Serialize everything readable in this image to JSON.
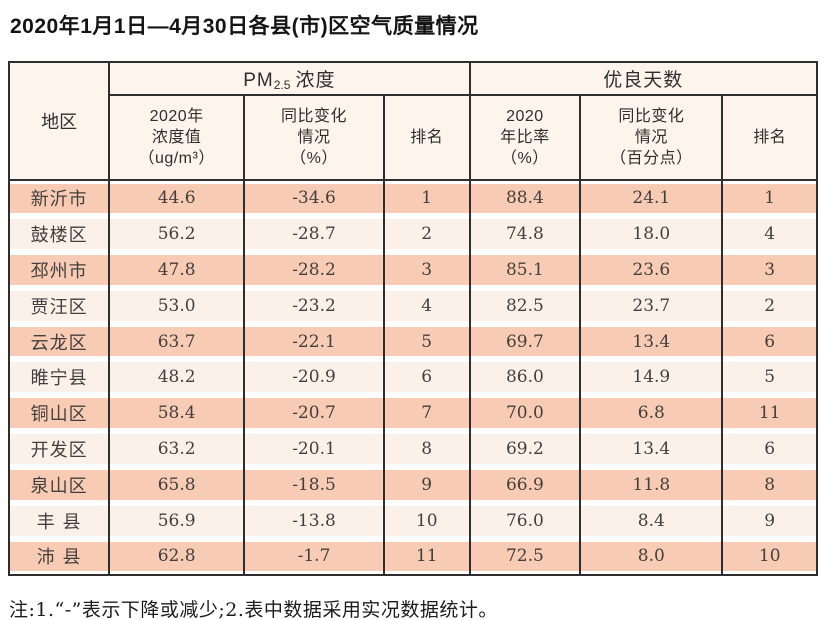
{
  "page": {
    "title": "2020年1月1日—4月30日各县(市)区空气质量情况",
    "note": "注:1.“-”表示下降或减少;2.表中数据采用实况数据统计。"
  },
  "table": {
    "region_header": "地区",
    "groups": {
      "pm25": {
        "prefix": "PM",
        "sub": "2.5",
        "suffix": "浓度"
      },
      "good_days": "优良天数"
    },
    "subheaders": {
      "pm_value": "2020年\n浓度值\n（ug/m³）",
      "pm_change": "同比变化\n情况\n（%）",
      "pm_rank": "排名",
      "gd_ratio": "2020\n年比率\n（%）",
      "gd_change": "同比变化\n情况\n（百分点）",
      "gd_rank": "排名"
    },
    "rows": [
      {
        "region": "新沂市",
        "pm_value": "44.6",
        "pm_change": "-34.6",
        "pm_rank": "1",
        "gd_ratio": "88.4",
        "gd_change": "24.1",
        "gd_rank": "1"
      },
      {
        "region": "鼓楼区",
        "pm_value": "56.2",
        "pm_change": "-28.7",
        "pm_rank": "2",
        "gd_ratio": "74.8",
        "gd_change": "18.0",
        "gd_rank": "4"
      },
      {
        "region": "邳州市",
        "pm_value": "47.8",
        "pm_change": "-28.2",
        "pm_rank": "3",
        "gd_ratio": "85.1",
        "gd_change": "23.6",
        "gd_rank": "3"
      },
      {
        "region": "贾汪区",
        "pm_value": "53.0",
        "pm_change": "-23.2",
        "pm_rank": "4",
        "gd_ratio": "82.5",
        "gd_change": "23.7",
        "gd_rank": "2"
      },
      {
        "region": "云龙区",
        "pm_value": "63.7",
        "pm_change": "-22.1",
        "pm_rank": "5",
        "gd_ratio": "69.7",
        "gd_change": "13.4",
        "gd_rank": "6"
      },
      {
        "region": "睢宁县",
        "pm_value": "48.2",
        "pm_change": "-20.9",
        "pm_rank": "6",
        "gd_ratio": "86.0",
        "gd_change": "14.9",
        "gd_rank": "5"
      },
      {
        "region": "铜山区",
        "pm_value": "58.4",
        "pm_change": "-20.7",
        "pm_rank": "7",
        "gd_ratio": "70.0",
        "gd_change": "6.8",
        "gd_rank": "11"
      },
      {
        "region": "开发区",
        "pm_value": "63.2",
        "pm_change": "-20.1",
        "pm_rank": "8",
        "gd_ratio": "69.2",
        "gd_change": "13.4",
        "gd_rank": "6"
      },
      {
        "region": "泉山区",
        "pm_value": "65.8",
        "pm_change": "-18.5",
        "pm_rank": "9",
        "gd_ratio": "66.9",
        "gd_change": "11.8",
        "gd_rank": "8"
      },
      {
        "region": "丰 县",
        "pm_value": "56.9",
        "pm_change": "-13.8",
        "pm_rank": "10",
        "gd_ratio": "76.0",
        "gd_change": "8.4",
        "gd_rank": "9"
      },
      {
        "region": "沛 县",
        "pm_value": "62.8",
        "pm_change": "-1.7",
        "pm_rank": "11",
        "gd_ratio": "72.5",
        "gd_change": "8.0",
        "gd_rank": "10"
      }
    ]
  },
  "colors": {
    "row_odd_band": "#f8cbb4",
    "row_even_band": "#fcf1e9",
    "header_bg": "#fdf4eb",
    "border": "#2e2e2e"
  }
}
